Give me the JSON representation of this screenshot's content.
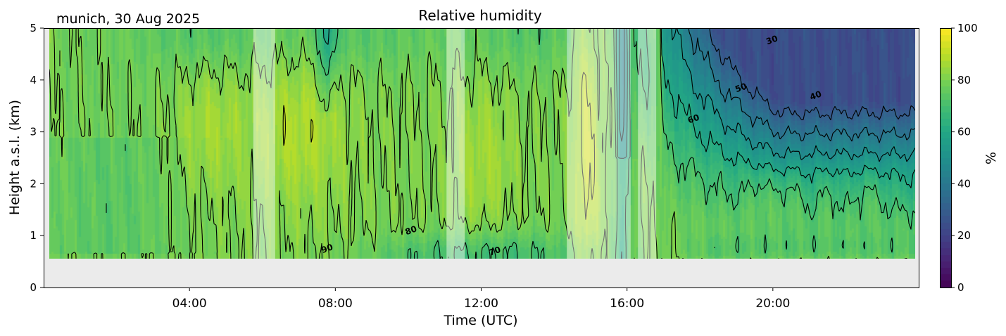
{
  "chart_data": {
    "type": "heatmap",
    "title": "Relative humidity",
    "subtitle": "munich, 30 Aug 2025",
    "xlabel": "Time (UTC)",
    "ylabel": "Height a.s.l. (km)",
    "x_unit": "hours UTC",
    "xlim": [
      0,
      24
    ],
    "ylim": [
      0,
      5
    ],
    "x_ticks": [
      {
        "value": 4,
        "label": "04:00"
      },
      {
        "value": 8,
        "label": "08:00"
      },
      {
        "value": 12,
        "label": "12:00"
      },
      {
        "value": 16,
        "label": "16:00"
      },
      {
        "value": 20,
        "label": "20:00"
      }
    ],
    "y_ticks": [
      {
        "value": 0,
        "label": "0"
      },
      {
        "value": 1,
        "label": "1"
      },
      {
        "value": 2,
        "label": "2"
      },
      {
        "value": 3,
        "label": "3"
      },
      {
        "value": 4,
        "label": "4"
      },
      {
        "value": 5,
        "label": "5"
      }
    ],
    "colorbar": {
      "label": "%",
      "colormap": "viridis",
      "range": [
        0,
        100
      ],
      "ticks": [
        {
          "value": 0,
          "label": "0"
        },
        {
          "value": 20,
          "label": "20"
        },
        {
          "value": 40,
          "label": "40"
        },
        {
          "value": 60,
          "label": "60"
        },
        {
          "value": 80,
          "label": "80"
        },
        {
          "value": 100,
          "label": "100"
        }
      ]
    },
    "data_range": {
      "time_start_h": 0.15,
      "time_end_h": 23.9,
      "height_min_km": 0.55,
      "height_max_km": 5
    },
    "below_data_fill": "#ebebeb",
    "contour_levels": [
      30,
      40,
      50,
      60,
      70,
      80,
      90
    ],
    "contour_labels": [
      {
        "text": "30",
        "t": 20.0,
        "h": 4.72
      },
      {
        "text": "40",
        "t": 21.2,
        "h": 3.65
      },
      {
        "text": "50",
        "t": 19.15,
        "h": 3.8
      },
      {
        "text": "60",
        "t": 17.85,
        "h": 3.2
      },
      {
        "text": "70",
        "t": 12.4,
        "h": 0.65
      },
      {
        "text": "80",
        "t": 10.1,
        "h": 1.05
      },
      {
        "text": "90",
        "t": 7.8,
        "h": 0.7
      }
    ],
    "masked_periods_h": [
      [
        5.75,
        6.35
      ],
      [
        11.05,
        11.55
      ],
      [
        14.35,
        16.1
      ],
      [
        16.3,
        16.8
      ]
    ],
    "field_description": [
      {
        "period_h": [
          0.15,
          5.7
        ],
        "summary": "RH ~75-90% through column; moister (85-92%) core near 4-5 h at 2-4 km; drier (~72-78%) 0.6-2.8 km before 3 h"
      },
      {
        "period_h": [
          6.35,
          11.0
        ],
        "summary": "Very moist 85-93% at 2-4 km around 6.5-8 h; dry intrusion (~55-65%) near 7.7 h above 3.5 km; ~70-80% near ground after 9 h"
      },
      {
        "period_h": [
          11.55,
          14.3
        ],
        "summary": "~80-90% at 1.5-3.5 km, 90% core at 12 h; 60-70% near 0.6-1 km"
      },
      {
        "period_h": [
          14.35,
          16.8
        ],
        "summary": "Vertical stripes 85-100% near 14.8-15.3 h, drops to ~30-50% near 15.9 h aloft"
      },
      {
        "period_h": [
          16.8,
          23.9
        ],
        "summary": "Strong drying aloft: 30% at ~4.3-5 km, 40% at ~3.9 km, 50% ~3.5 km, 60% ~3.1 km, 70% ~2.5 km; 80-85% pockets at 1.5-2.3 km around 19.5-22.5 h; 70% layer below 1 km"
      }
    ]
  }
}
